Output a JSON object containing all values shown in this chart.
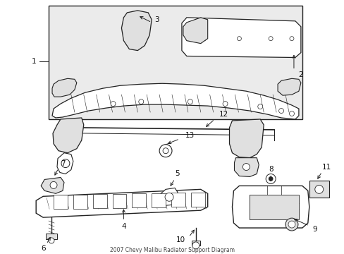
{
  "title": "2007 Chevy Malibu Radiator Support Diagram",
  "background_color": "#ffffff",
  "line_color": "#222222",
  "fill_gray": "#e0e0e0",
  "fill_light": "#efefef",
  "fill_box": "#ebebeb",
  "label_color": "#111111",
  "figsize": [
    4.89,
    3.6
  ],
  "dpi": 100,
  "label_fontsize": 7.5
}
